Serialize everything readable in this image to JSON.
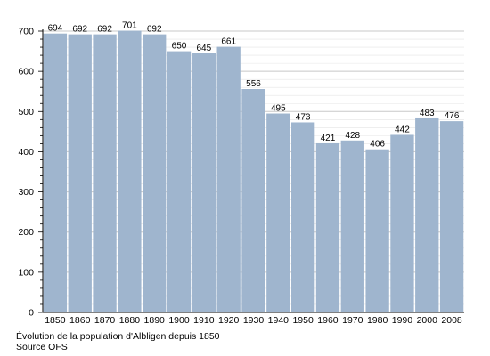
{
  "chart_data": {
    "type": "bar",
    "categories": [
      "1850",
      "1860",
      "1870",
      "1880",
      "1890",
      "1900",
      "1910",
      "1920",
      "1930",
      "1940",
      "1950",
      "1960",
      "1970",
      "1980",
      "1990",
      "2000",
      "2008"
    ],
    "values": [
      694,
      692,
      692,
      701,
      692,
      650,
      645,
      661,
      556,
      495,
      473,
      421,
      428,
      406,
      442,
      483,
      476
    ],
    "title": "",
    "xlabel": "",
    "ylabel": "",
    "ylim": [
      0,
      700
    ],
    "yticks": [
      0,
      100,
      200,
      300,
      400,
      500,
      600,
      700
    ],
    "grid": true,
    "bar_color": "#9fb5ce",
    "grid_color": "#c8c8c8",
    "data_labels": true
  },
  "caption": {
    "line1": "Évolution de la population d'Albligen depuis 1850",
    "line2": "Source OFS"
  }
}
